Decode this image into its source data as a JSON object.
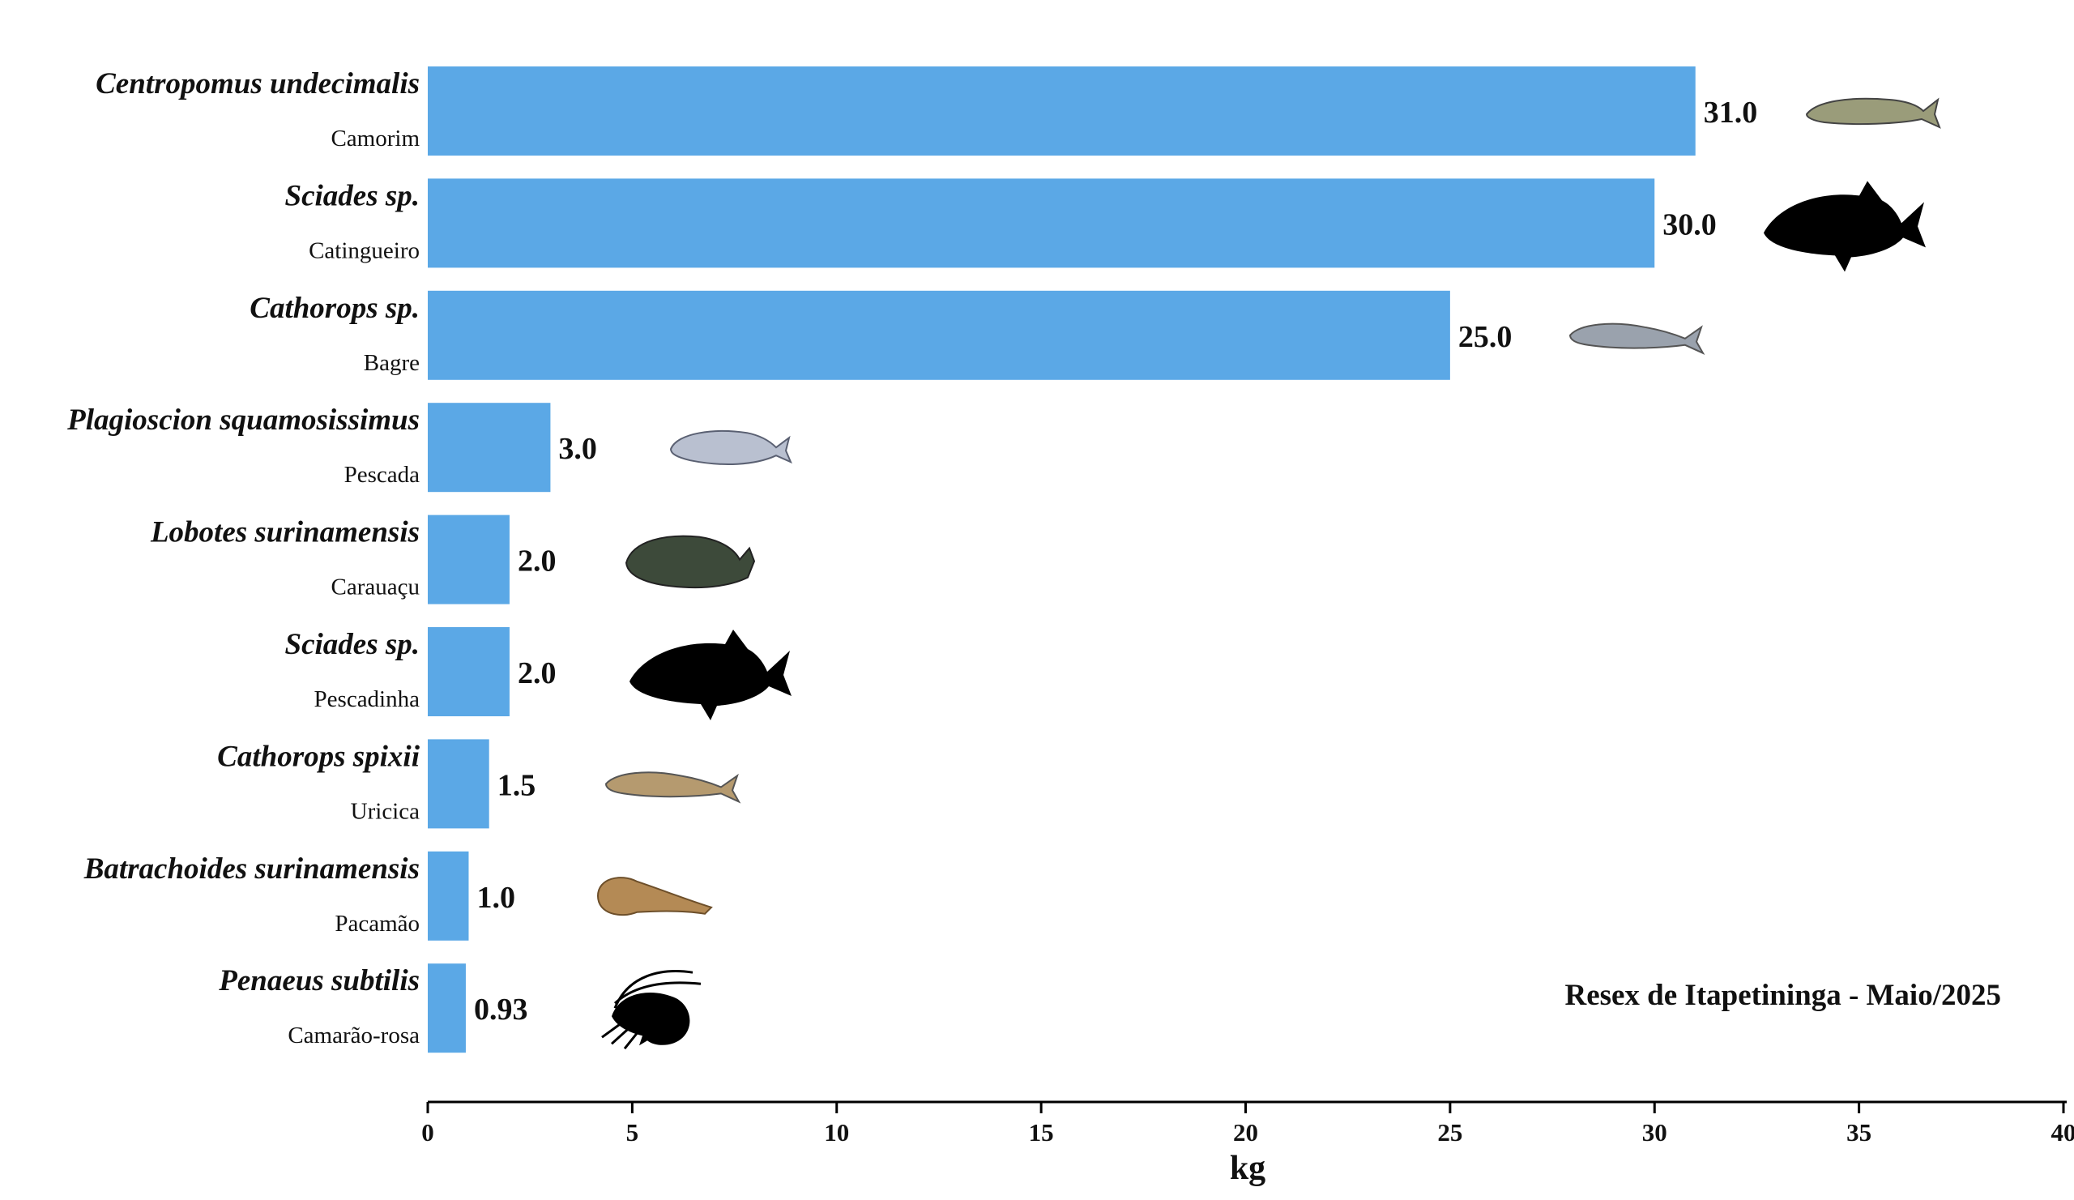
{
  "chart_data": {
    "type": "bar",
    "orientation": "horizontal",
    "bar_color": "#5BA8E6",
    "categories": [
      {
        "scientific": "Centropomus undecimalis",
        "common": "Camorim",
        "value": 31.0,
        "label": "31.0",
        "icon": "snook-fish-icon"
      },
      {
        "scientific": "Sciades sp.",
        "common": "Catingueiro",
        "value": 30.0,
        "label": "30.0",
        "icon": "fish-silhouette-icon"
      },
      {
        "scientific": "Cathorops sp.",
        "common": "Bagre",
        "value": 25.0,
        "label": "25.0",
        "icon": "catfish-icon"
      },
      {
        "scientific": "Plagioscion squamosissimus",
        "common": "Pescada",
        "value": 3.0,
        "label": "3.0",
        "icon": "croaker-fish-icon"
      },
      {
        "scientific": "Lobotes surinamensis",
        "common": "Carauaçu",
        "value": 2.0,
        "label": "2.0",
        "icon": "tripletail-fish-icon"
      },
      {
        "scientific": "Sciades sp.",
        "common": "Pescadinha",
        "value": 2.0,
        "label": "2.0",
        "icon": "fish-silhouette-icon"
      },
      {
        "scientific": "Cathorops spixii",
        "common": "Uricica",
        "value": 1.5,
        "label": "1.5",
        "icon": "catfish-icon"
      },
      {
        "scientific": "Batrachoides surinamensis",
        "common": "Pacamão",
        "value": 1.0,
        "label": "1.0",
        "icon": "toadfish-icon"
      },
      {
        "scientific": "Penaeus subtilis",
        "common": "Camarão-rosa",
        "value": 0.93,
        "label": "0.93",
        "icon": "shrimp-icon"
      }
    ],
    "xlabel": "kg",
    "xlim": [
      0,
      40
    ],
    "xticks": [
      "0",
      "5",
      "10",
      "15",
      "20",
      "25",
      "30",
      "35",
      "40"
    ],
    "annotation": "Resex de Itapetininga - Maio/2025"
  }
}
